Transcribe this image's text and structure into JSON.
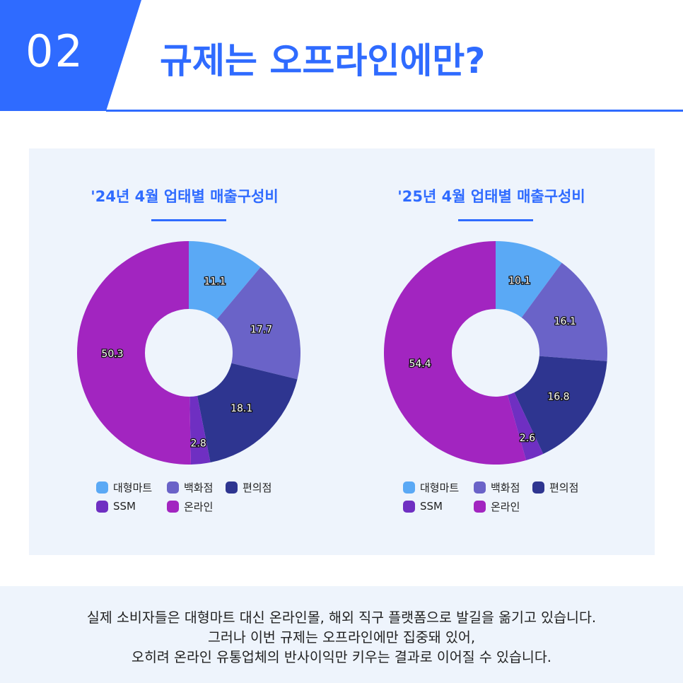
{
  "header": {
    "number": "02",
    "title": "규제는 오프라인에만?"
  },
  "colors": {
    "accent": "#2f6bff",
    "panel_bg": "#eef4fc",
    "대형마트": "#5aa9f5",
    "백화점": "#6a63c8",
    "편의점": "#2e3590",
    "SSM": "#6f2fc2",
    "온라인": "#a225c0"
  },
  "chart_data": [
    {
      "type": "pie",
      "title": "'24년 4월 업태별 매출구성비",
      "donut": true,
      "categories": [
        "대형마트",
        "백화점",
        "편의점",
        "SSM",
        "온라인"
      ],
      "values": [
        11.1,
        17.7,
        18.1,
        2.8,
        50.3
      ],
      "labels": [
        "11.1",
        "17.7",
        "18.1",
        "2.8",
        "50.3"
      ],
      "legend": "bottom"
    },
    {
      "type": "pie",
      "title": "'25년 4월 업태별 매출구성비",
      "donut": true,
      "categories": [
        "대형마트",
        "백화점",
        "편의점",
        "SSM",
        "온라인"
      ],
      "values": [
        10.1,
        16.1,
        16.8,
        2.6,
        54.4
      ],
      "labels": [
        "10.1",
        "16.1",
        "16.8",
        "2.6",
        "54.4"
      ],
      "legend": "bottom"
    }
  ],
  "footer": {
    "lines": [
      "실제 소비자들은 대형마트 대신 온라인몰, 해외 직구 플랫폼으로 발길을 옮기고 있습니다.",
      "그러나 이번 규제는 오프라인에만 집중돼 있어,",
      "오히려 온라인 유통업체의 반사이익만 키우는 결과로 이어질 수 있습니다."
    ]
  }
}
